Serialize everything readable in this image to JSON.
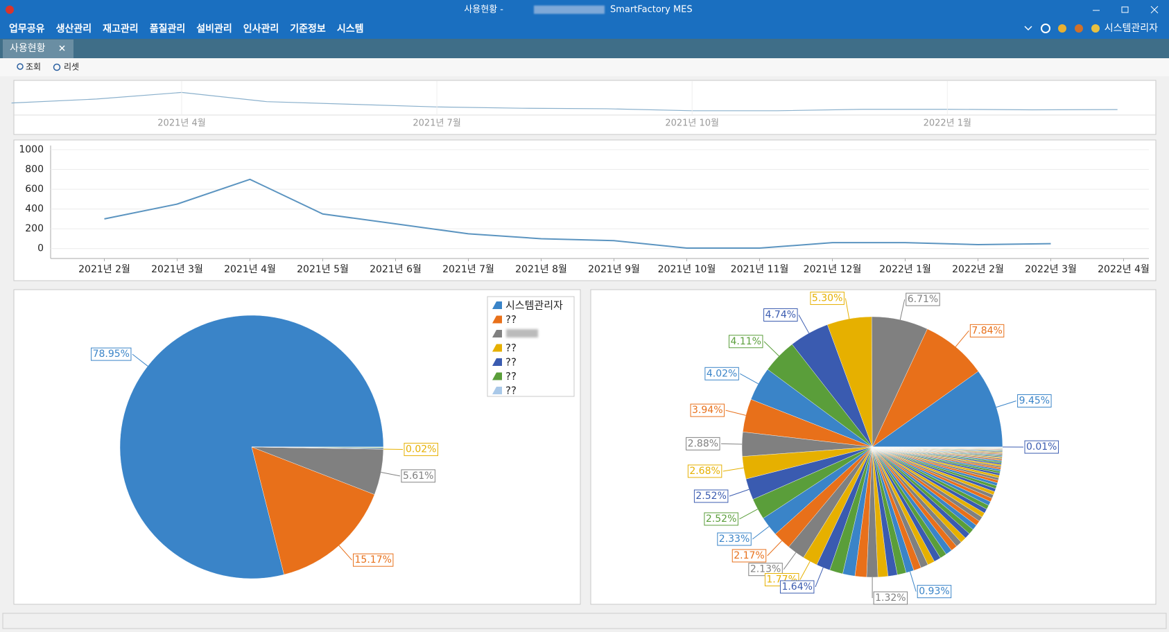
{
  "window": {
    "title": "사용현황 -",
    "app": "SmartFactory MES",
    "user": "시스템관리자"
  },
  "menu": [
    "업무공유",
    "생산관리",
    "재고관리",
    "품질관리",
    "설비관리",
    "인사관리",
    "기준정보",
    "시스템"
  ],
  "tabs": [
    "사용현황"
  ],
  "toolbar": [
    "조회",
    "리셋"
  ],
  "navigator": {
    "xticks": [
      "2021년 4월",
      "2021년 7월",
      "2021년 10월",
      "2022년 1월"
    ]
  },
  "chart_data": [
    {
      "type": "line",
      "categories": [
        "2021년 2월",
        "2021년 3월",
        "2021년 4월",
        "2021년 5월",
        "2021년 6월",
        "2021년 7월",
        "2021년 8월",
        "2021년 9월",
        "2021년 10월",
        "2021년 11월",
        "2021년 12월",
        "2022년 1월",
        "2022년 2월",
        "2022년 3월",
        "2022년 4월"
      ],
      "series": [
        {
          "color": "#5b94c0",
          "values": [
            300,
            450,
            700,
            350,
            250,
            150,
            100,
            80,
            5,
            5,
            60,
            60,
            40,
            50,
            null
          ]
        }
      ],
      "ylim": [
        -100,
        1000
      ],
      "yticks": [
        0,
        200,
        400,
        600,
        800,
        1000
      ],
      "grid": true
    },
    {
      "type": "pie",
      "names": [
        "시스템관리자",
        "??",
        null,
        "??",
        "??",
        "??",
        "??"
      ],
      "values": [
        78.95,
        15.17,
        5.61,
        0.02,
        0.1,
        0.1,
        0.05
      ],
      "value_labels": [
        "78.95%",
        "15.17%",
        "5.61%",
        "0.02%",
        null,
        null,
        null
      ],
      "colors": [
        "#3a84c8",
        "#e8701a",
        "#808080",
        "#e6b000",
        "#3a5bb0",
        "#5a9e3a",
        "#a9c8e8"
      ],
      "legend": "top-right"
    },
    {
      "type": "pie",
      "values": [
        9.45,
        7.84,
        6.71,
        5.3,
        4.74,
        4.11,
        4.02,
        3.94,
        2.88,
        2.68,
        2.52,
        2.52,
        2.33,
        2.17,
        2.13,
        1.77,
        1.64,
        1.58,
        1.45,
        1.38,
        1.32,
        1.2,
        1.1,
        1.05,
        0.93,
        0.9,
        0.88,
        0.85,
        0.82,
        0.8,
        0.78,
        0.75,
        0.72,
        0.7,
        0.68,
        0.65,
        0.62,
        0.6,
        0.58,
        0.55,
        0.52,
        0.5,
        0.48,
        0.45,
        0.42,
        0.4,
        0.38,
        0.36,
        0.34,
        0.32,
        0.3,
        0.28,
        0.26,
        0.24,
        0.22,
        0.2,
        0.19,
        0.18,
        0.17,
        0.16,
        0.15,
        0.14,
        0.13,
        0.12,
        0.11,
        0.1,
        0.1,
        0.1,
        0.1,
        0.1,
        0.09,
        0.08,
        0.07,
        0.06,
        0.05,
        0.05,
        0.04,
        0.04,
        0.03,
        0.03,
        0.02,
        0.02,
        0.01
      ],
      "value_labels": [
        "9.45%",
        "7.84%",
        "6.71%",
        "5.30%",
        "4.74%",
        "4.11%",
        "4.02%",
        "3.94%",
        "2.88%",
        "2.68%",
        "2.52%",
        "2.52%",
        "2.33%",
        "2.17%",
        "2.13%",
        "1.77%",
        "1.64%",
        null,
        null,
        null,
        "1.32%",
        null,
        null,
        null,
        "0.93%",
        null,
        null,
        null,
        null,
        null,
        null,
        null,
        null,
        null,
        null,
        null,
        null,
        null,
        null,
        null,
        null,
        null,
        null,
        null,
        null,
        null,
        null,
        null,
        null,
        null,
        null,
        null,
        null,
        null,
        null,
        null,
        null,
        null,
        null,
        null,
        null,
        null,
        null,
        null,
        null,
        null,
        null,
        null,
        null,
        null,
        null,
        null,
        null,
        null,
        null,
        null,
        null,
        null,
        null,
        null,
        null,
        null,
        "0.01%"
      ],
      "colors": [
        "#3a84c8",
        "#e8701a",
        "#808080",
        "#e6b000",
        "#3a5bb0",
        "#5a9e3a"
      ]
    }
  ]
}
